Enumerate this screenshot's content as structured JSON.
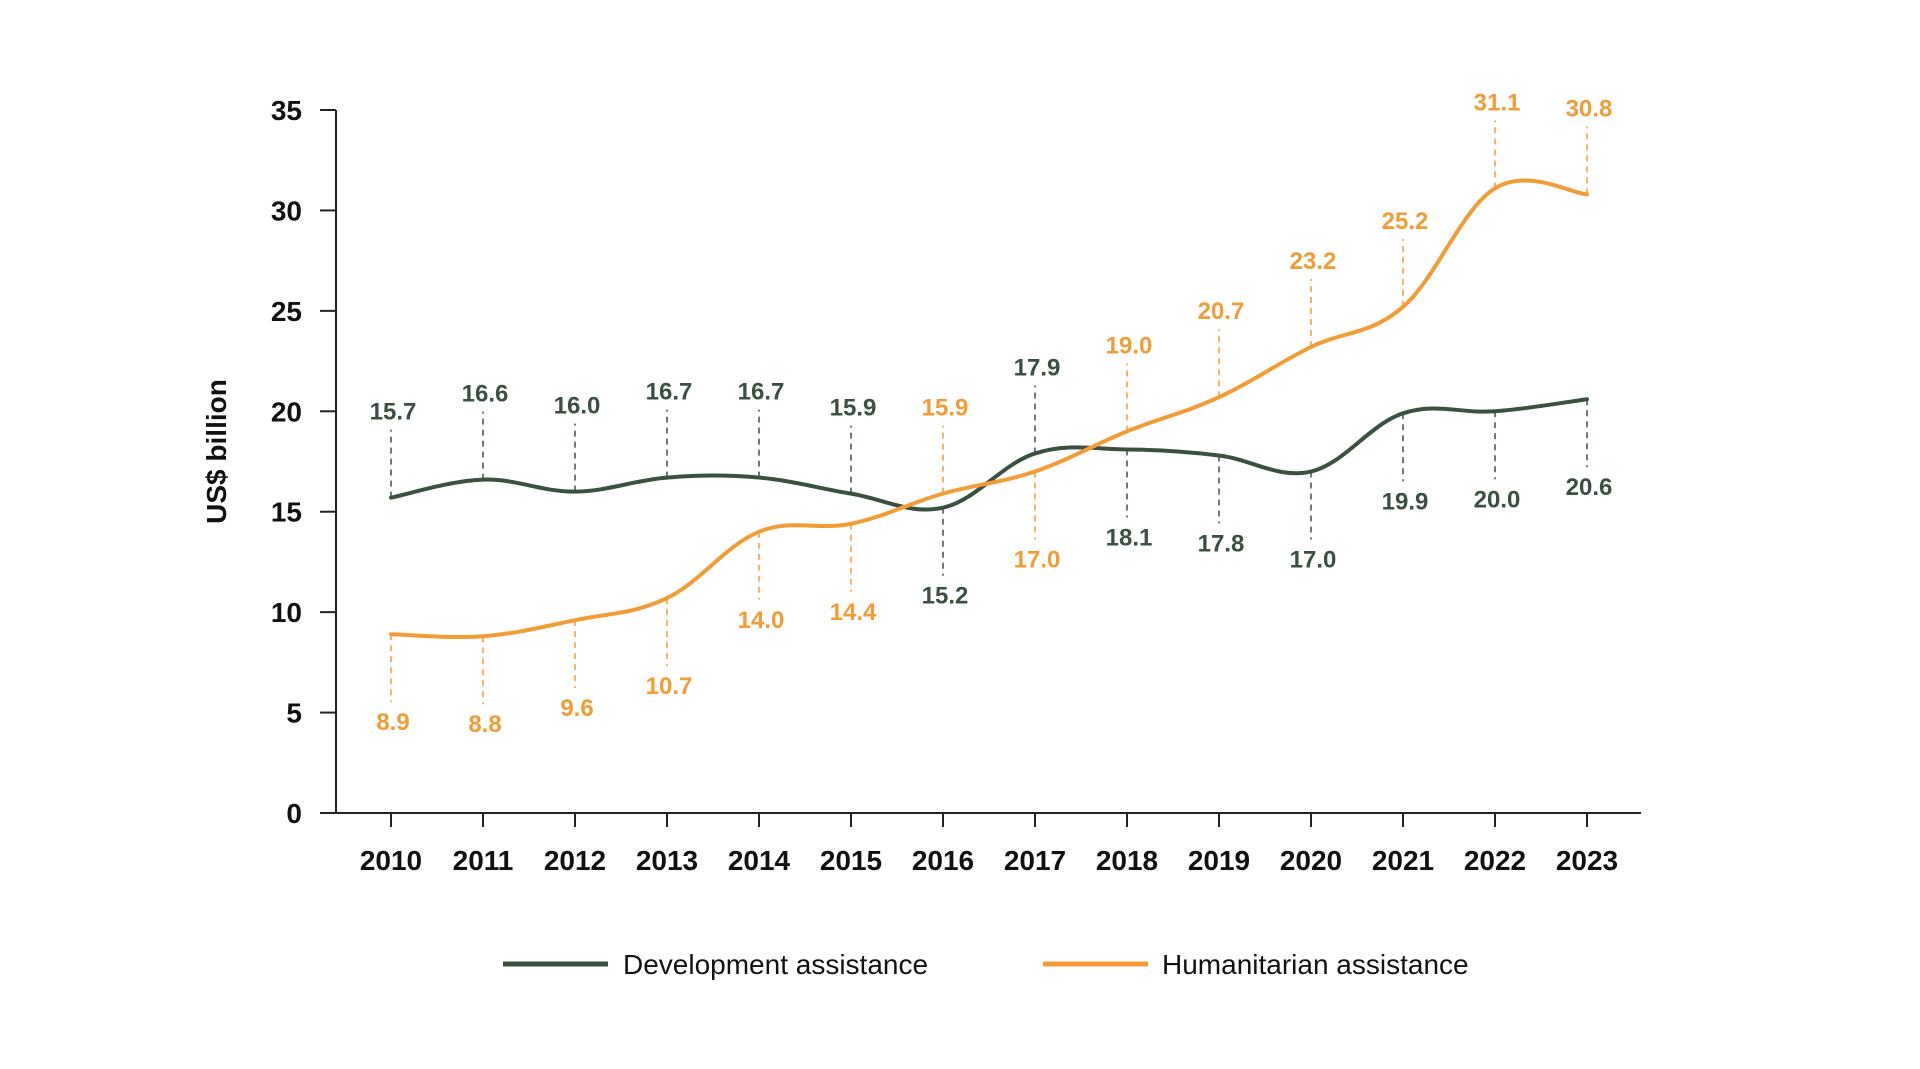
{
  "chart_data": {
    "type": "line",
    "title": "",
    "xlabel": "",
    "ylabel": "US$ billion",
    "ylim": [
      0,
      35
    ],
    "yticks": [
      0,
      5,
      10,
      15,
      20,
      25,
      30,
      35
    ],
    "grid": false,
    "legend_position": "bottom",
    "categories": [
      "2010",
      "2011",
      "2012",
      "2013",
      "2014",
      "2015",
      "2016",
      "2017",
      "2018",
      "2019",
      "2020",
      "2021",
      "2022",
      "2023"
    ],
    "series": [
      {
        "name": "Development assistance",
        "color": "#3a5140",
        "values": [
          15.7,
          16.6,
          16.0,
          16.7,
          16.7,
          15.9,
          15.2,
          17.9,
          18.1,
          17.8,
          17.0,
          19.9,
          20.0,
          20.6
        ],
        "labels": [
          "15.7",
          "16.6",
          "16.0",
          "16.7",
          "16.7",
          "15.9",
          "15.2",
          "17.9",
          "18.1",
          "17.8",
          "17.0",
          "19.9",
          "20.0",
          "20.6"
        ],
        "label_side": [
          "above",
          "above",
          "above",
          "above",
          "above",
          "above",
          "below",
          "above",
          "below",
          "below",
          "below",
          "below",
          "below",
          "below"
        ]
      },
      {
        "name": "Humanitarian assistance",
        "color": "#f39c35",
        "values": [
          8.9,
          8.8,
          9.6,
          10.7,
          14.0,
          14.4,
          15.9,
          17.0,
          19.0,
          20.7,
          23.2,
          25.2,
          31.1,
          30.8
        ],
        "labels": [
          "8.9",
          "8.8",
          "9.6",
          "10.7",
          "14.0",
          "14.4",
          "15.9",
          "17.0",
          "19.0",
          "20.7",
          "23.2",
          "25.2",
          "31.1",
          "30.8"
        ],
        "label_side": [
          "below",
          "below",
          "below",
          "below",
          "below",
          "below",
          "above",
          "below",
          "above",
          "above",
          "above",
          "above",
          "above",
          "above"
        ]
      }
    ]
  },
  "legend": {
    "development": "Development assistance",
    "humanitarian": "Humanitarian assistance"
  }
}
